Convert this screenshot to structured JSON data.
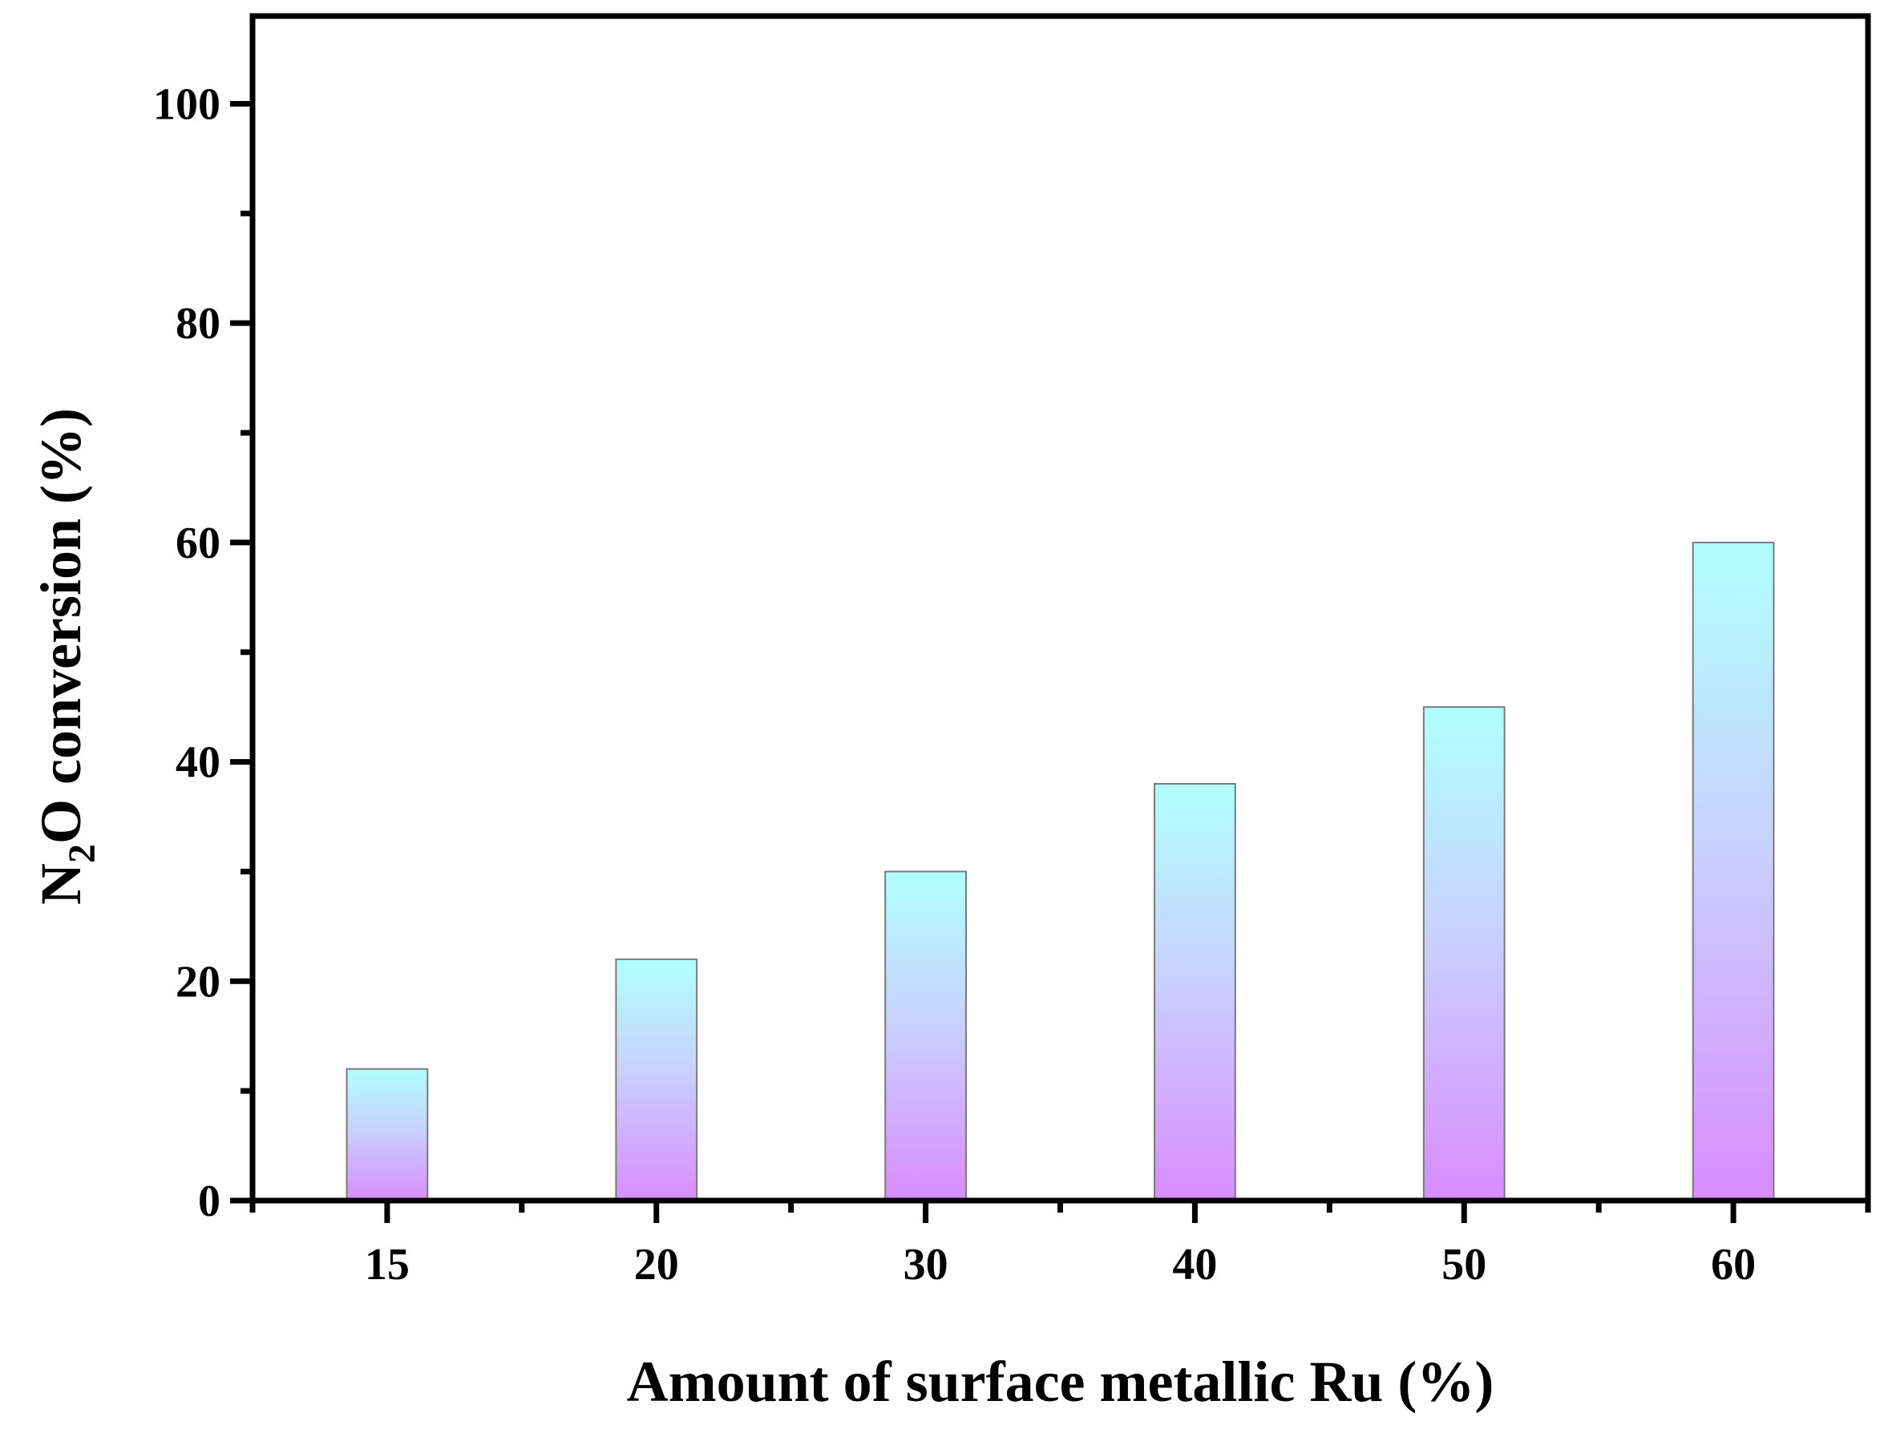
{
  "chart_data": {
    "type": "bar",
    "categories": [
      "15",
      "20",
      "30",
      "40",
      "50",
      "60"
    ],
    "values": [
      12,
      22,
      30,
      38,
      45,
      60
    ],
    "xlabel": "Amount of surface metallic Ru (%)",
    "ylabel": {
      "prefix": "N",
      "subscript": "2",
      "suffix": "O conversion (%)"
    },
    "ylim": [
      0,
      108
    ],
    "yticks": [
      0,
      20,
      40,
      60,
      80,
      100
    ],
    "yticks_minor": [
      10,
      30,
      50,
      70,
      90
    ],
    "grid": false,
    "legend": "none",
    "colors": {
      "bar_top": "#b0ffff",
      "bar_bottom": "#d98cff",
      "bar_edge": "#7a7a7a",
      "axis": "#000000"
    }
  }
}
